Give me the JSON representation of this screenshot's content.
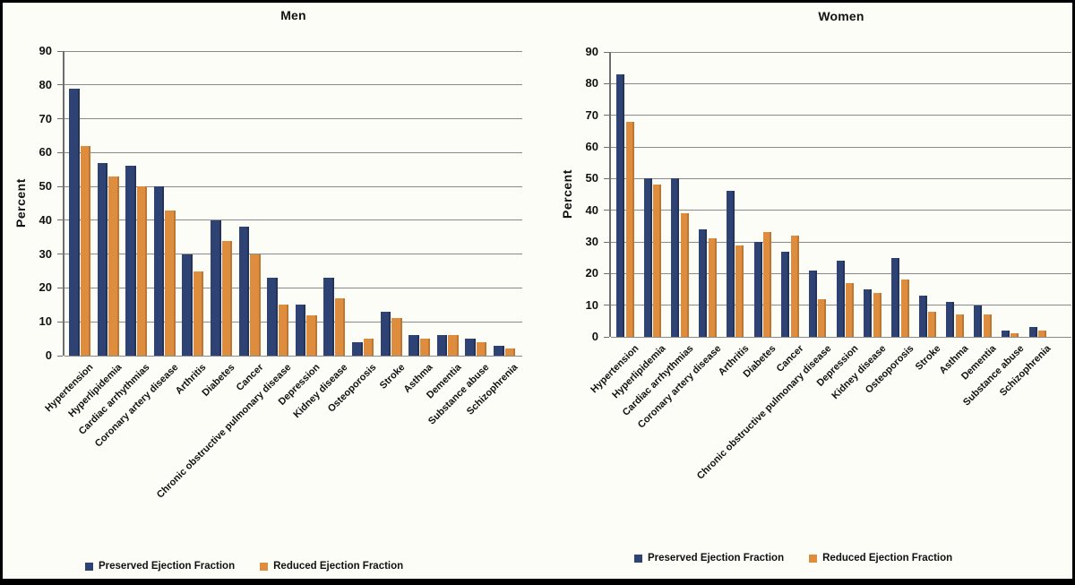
{
  "figure": {
    "colors": {
      "preserved": "#2E4274",
      "reduced": "#DE8C3E",
      "grid": "#8A8A8A",
      "axis": "#6E6E6E",
      "background": "#FDFDF8",
      "border": "#000000",
      "text": "#111111"
    }
  },
  "chart_data": [
    {
      "type": "bar",
      "title": "Men",
      "ylabel": "Percent",
      "ylim": [
        0,
        90
      ],
      "ytick_step": 10,
      "grid": true,
      "legend_position": "bottom",
      "categories": [
        "Hypertension",
        "Hyperlipidemia",
        "Cardiac arrhythmias",
        "Coronary artery disease",
        "Arthritis",
        "Diabetes",
        "Cancer",
        "Chronic obstructive pulmonary disease",
        "Depression",
        "Kidney disease",
        "Osteoporosis",
        "Stroke",
        "Asthma",
        "Dementia",
        "Substance abuse",
        "Schizophrenia"
      ],
      "series": [
        {
          "name": "Preserved Ejection Fraction",
          "values": [
            79,
            57,
            56,
            50,
            30,
            40,
            38,
            23,
            15,
            23,
            4,
            13,
            6,
            6,
            5,
            3
          ]
        },
        {
          "name": "Reduced Ejection Fraction",
          "values": [
            62,
            53,
            50,
            43,
            25,
            34,
            30,
            15,
            12,
            17,
            5,
            11,
            5,
            6,
            4,
            2
          ]
        }
      ]
    },
    {
      "type": "bar",
      "title": "Women",
      "ylabel": "Percent",
      "ylim": [
        0,
        90
      ],
      "ytick_step": 10,
      "grid": true,
      "legend_position": "bottom",
      "categories": [
        "Hypertension",
        "Hyperlipidemia",
        "Cardiac arrhythmias",
        "Coronary artery disease",
        "Arthritis",
        "Diabetes",
        "Cancer",
        "Chronic obstructive pulmonary disease",
        "Depression",
        "Kidney disease",
        "Osteoporosis",
        "Stroke",
        "Asthma",
        "Dementia",
        "Substance abuse",
        "Schizophrenia"
      ],
      "series": [
        {
          "name": "Preserved Ejection Fraction",
          "values": [
            83,
            50,
            50,
            34,
            46,
            30,
            27,
            21,
            24,
            15,
            25,
            13,
            11,
            10,
            2,
            3
          ]
        },
        {
          "name": "Reduced Ejection Fraction",
          "values": [
            68,
            48,
            39,
            31,
            29,
            33,
            32,
            12,
            17,
            14,
            18,
            8,
            7,
            7,
            1,
            2
          ]
        }
      ]
    }
  ]
}
